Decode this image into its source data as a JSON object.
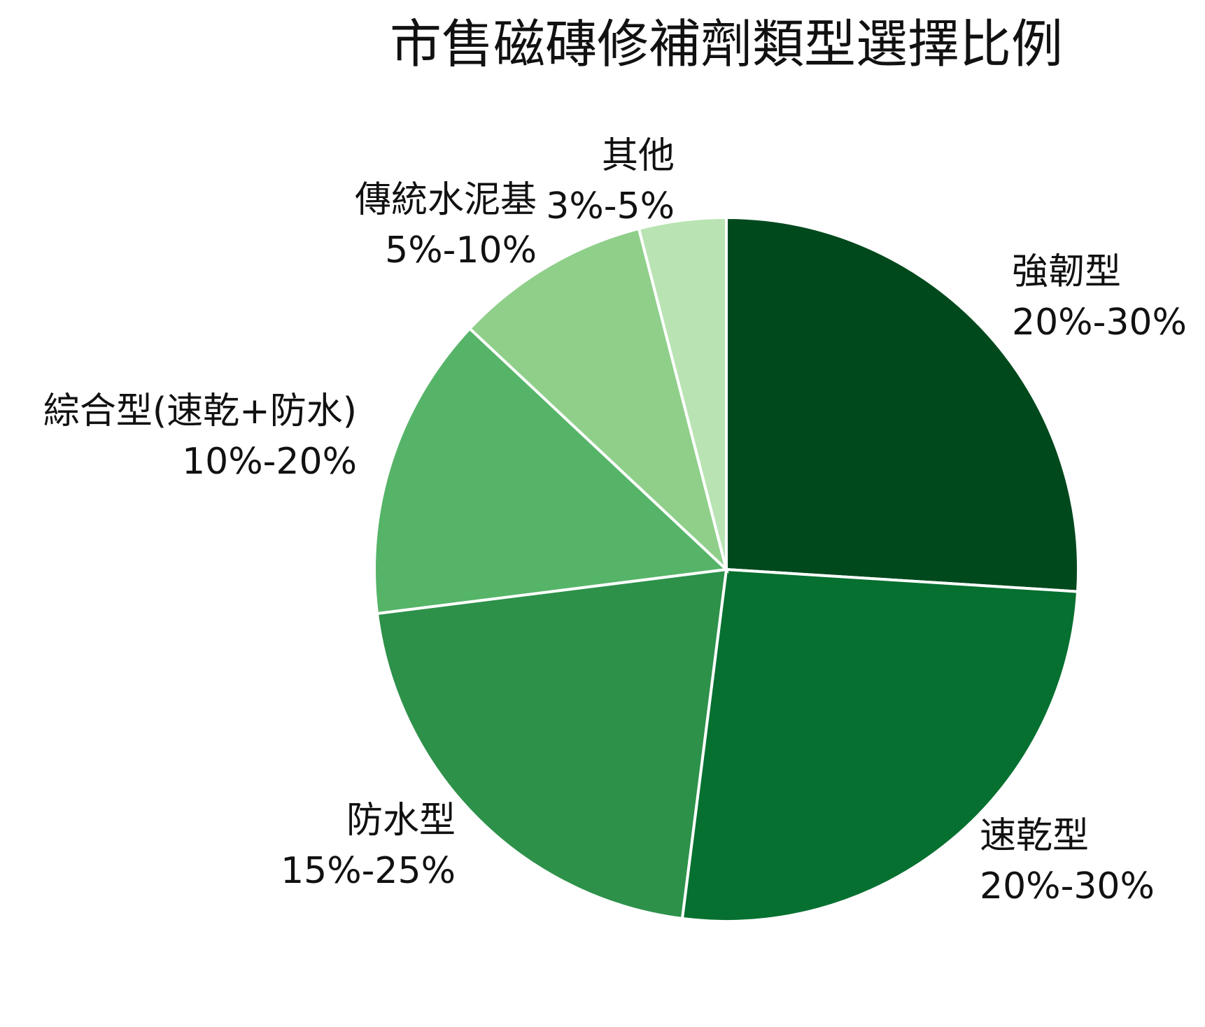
{
  "chart_data": {
    "type": "pie",
    "title": "市售磁磚修補劑類型選擇比例",
    "categories": [
      "強韌型",
      "速乾型",
      "防水型",
      "綜合型(速乾+防水)",
      "傳統水泥基",
      "其他"
    ],
    "values": [
      26,
      26,
      21,
      14,
      9,
      4
    ],
    "ranges": [
      "20%-30%",
      "20%-30%",
      "15%-25%",
      "10%-20%",
      "5%-10%",
      "3%-5%"
    ],
    "colors": [
      "#00491d",
      "#067030",
      "#2d914a",
      "#56b468",
      "#8fcf8a",
      "#b9e3b3"
    ]
  }
}
